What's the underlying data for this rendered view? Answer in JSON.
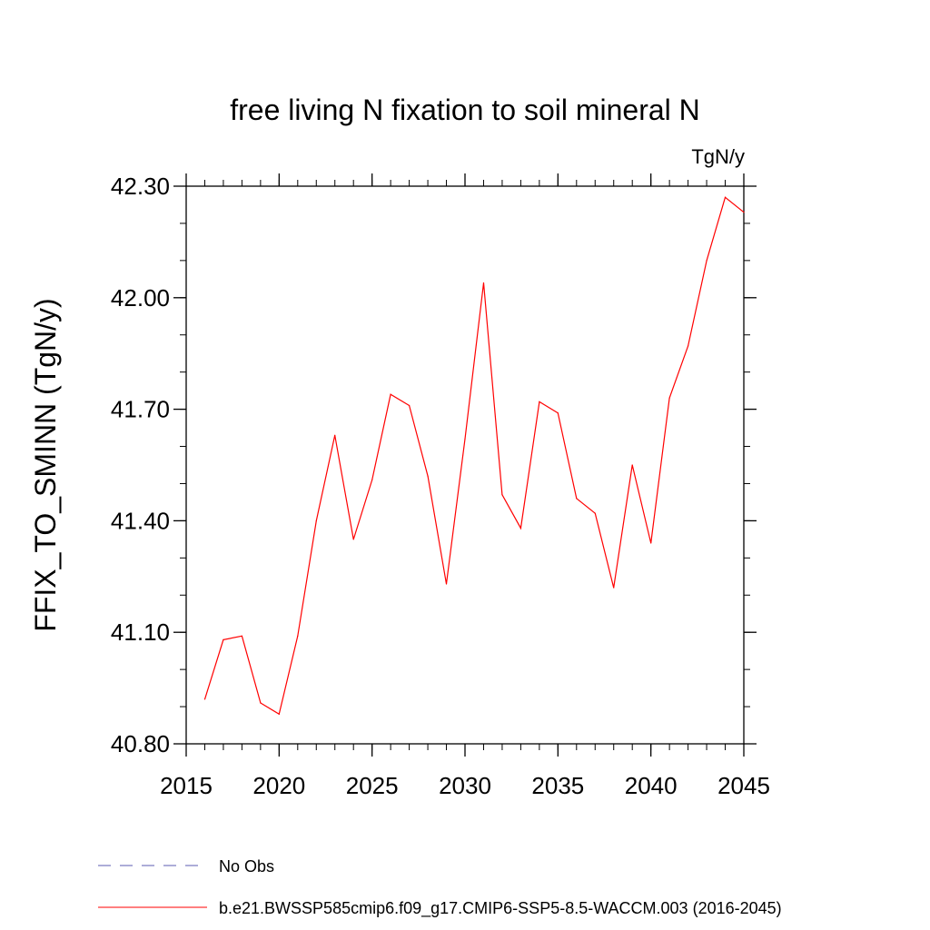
{
  "chart_data": {
    "type": "line",
    "title": "free living N fixation to soil mineral N",
    "units_label": "TgN/y",
    "xlabel": "",
    "ylabel": "FFIX_TO_SMINN  (TgN/y)",
    "xlim": [
      2015,
      2045
    ],
    "ylim": [
      40.8,
      42.3
    ],
    "x_ticks": [
      2015,
      2020,
      2025,
      2030,
      2035,
      2040,
      2045
    ],
    "x_tick_labels": [
      "2015",
      "2020",
      "2025",
      "2030",
      "2035",
      "2040",
      "2045"
    ],
    "y_ticks": [
      40.8,
      41.1,
      41.4,
      41.7,
      42.0,
      42.3
    ],
    "y_tick_labels": [
      "40.80",
      "41.10",
      "41.40",
      "41.70",
      "42.00",
      "42.30"
    ],
    "y_minor_step": 0.1,
    "x_minor_step": 1,
    "x": [
      2016,
      2017,
      2018,
      2019,
      2020,
      2021,
      2022,
      2023,
      2024,
      2025,
      2026,
      2027,
      2028,
      2029,
      2030,
      2031,
      2032,
      2033,
      2034,
      2035,
      2036,
      2037,
      2038,
      2039,
      2040,
      2041,
      2042,
      2043,
      2044,
      2045
    ],
    "series": [
      {
        "name": "b.e21.BWSSP585cmip6.f09_g17.CMIP6-SSP5-8.5-WACCM.003 (2016-2045)",
        "color": "#ff0000",
        "values": [
          40.92,
          41.08,
          41.09,
          40.91,
          40.88,
          41.09,
          41.4,
          41.63,
          41.35,
          41.51,
          41.74,
          41.71,
          41.52,
          41.23,
          41.62,
          42.04,
          41.47,
          41.38,
          41.72,
          41.69,
          41.46,
          41.42,
          41.22,
          41.55,
          41.34,
          41.73,
          41.87,
          42.1,
          42.27,
          42.23
        ]
      }
    ],
    "legend": [
      {
        "label": "No Obs",
        "style": "dashed",
        "color": "#5b5bb0"
      },
      {
        "label": "b.e21.BWSSP585cmip6.f09_g17.CMIP6-SSP5-8.5-WACCM.003 (2016-2045)",
        "style": "solid",
        "color": "#ff0000"
      }
    ],
    "legend_position": "bottom-left",
    "grid": false
  }
}
